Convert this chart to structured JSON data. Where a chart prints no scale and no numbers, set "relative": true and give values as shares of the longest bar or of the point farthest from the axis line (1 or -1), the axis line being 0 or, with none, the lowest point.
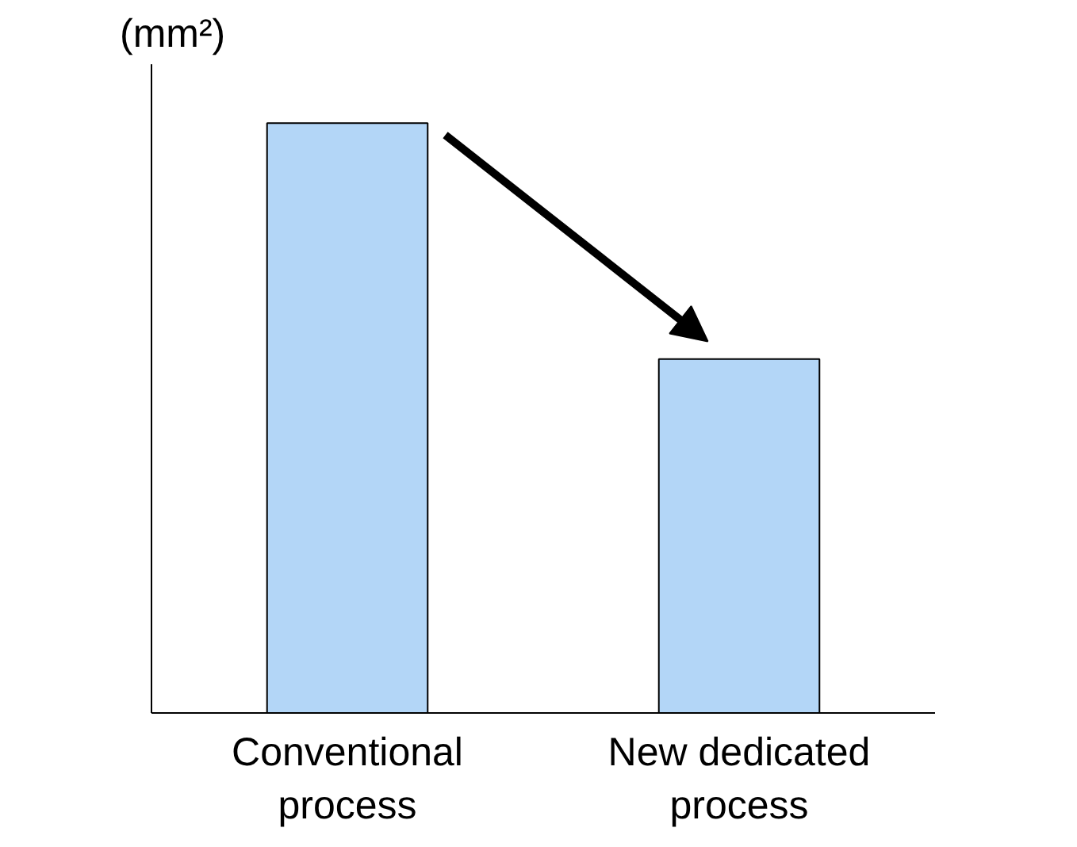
{
  "chart_data": {
    "type": "bar",
    "relative": true,
    "ylabel": "(mm²)",
    "categories": [
      "Conventional\nprocess",
      "New dedicated\nprocess"
    ],
    "values": [
      1,
      0.6
    ],
    "color": "#b3d6f7",
    "grid": false
  }
}
